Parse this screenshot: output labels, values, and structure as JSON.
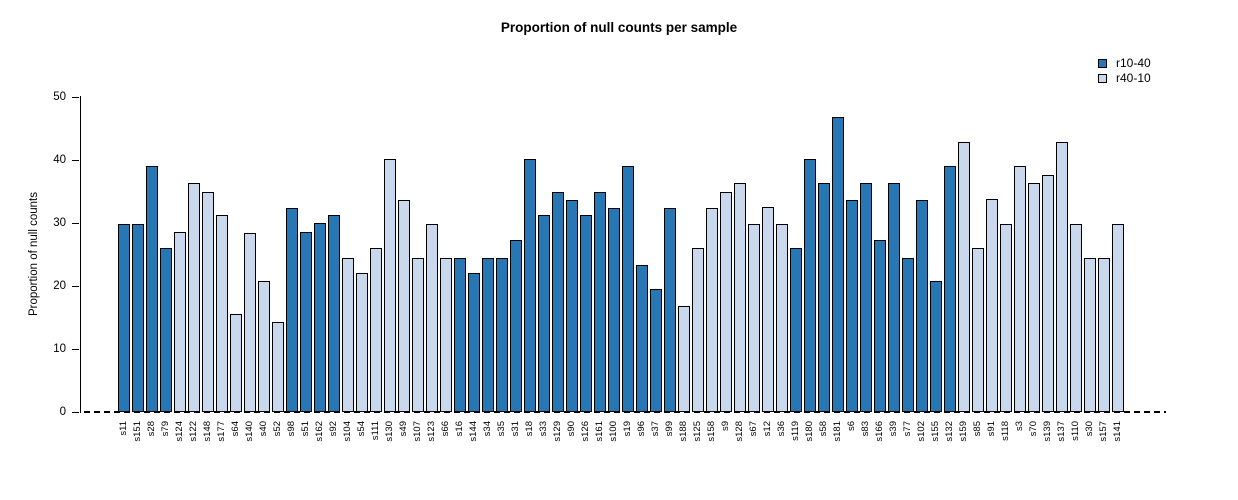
{
  "title": "Proportion of null counts per sample",
  "ylabel": "Proportion of null counts",
  "chart_data": {
    "type": "bar",
    "title": "Proportion of null counts per sample",
    "xlabel": "",
    "ylabel": "Proportion of null counts",
    "ylim": [
      0,
      50
    ],
    "y_ticks": [
      0,
      10,
      20,
      30,
      40,
      50
    ],
    "grid": false,
    "x_axis_style": "dashed",
    "legend_position": "top-right",
    "series_colors": {
      "r10-40": "#2777b4",
      "r40-10": "#c9d8ec"
    },
    "legend": [
      {
        "label": "r10-40",
        "color": "#2777b4"
      },
      {
        "label": "r40-10",
        "color": "#c9d8ec"
      }
    ],
    "bars": [
      {
        "label": "s11",
        "value": 29.8,
        "group": "r10-40"
      },
      {
        "label": "s151",
        "value": 29.8,
        "group": "r10-40"
      },
      {
        "label": "s28",
        "value": 39.0,
        "group": "r10-40"
      },
      {
        "label": "s79",
        "value": 26.0,
        "group": "r10-40"
      },
      {
        "label": "s124",
        "value": 28.6,
        "group": "r40-10"
      },
      {
        "label": "s122",
        "value": 36.4,
        "group": "r40-10"
      },
      {
        "label": "s148",
        "value": 35.0,
        "group": "r40-10"
      },
      {
        "label": "s177",
        "value": 31.2,
        "group": "r40-10"
      },
      {
        "label": "s64",
        "value": 15.6,
        "group": "r40-10"
      },
      {
        "label": "s140",
        "value": 28.5,
        "group": "r40-10"
      },
      {
        "label": "s40",
        "value": 20.8,
        "group": "r40-10"
      },
      {
        "label": "s52",
        "value": 14.3,
        "group": "r40-10"
      },
      {
        "label": "s98",
        "value": 32.4,
        "group": "r10-40"
      },
      {
        "label": "s51",
        "value": 28.6,
        "group": "r10-40"
      },
      {
        "label": "s162",
        "value": 30.0,
        "group": "r10-40"
      },
      {
        "label": "s92",
        "value": 31.2,
        "group": "r10-40"
      },
      {
        "label": "s104",
        "value": 24.5,
        "group": "r40-10"
      },
      {
        "label": "s54",
        "value": 22.1,
        "group": "r40-10"
      },
      {
        "label": "s111",
        "value": 26.0,
        "group": "r40-10"
      },
      {
        "label": "s130",
        "value": 40.2,
        "group": "r40-10"
      },
      {
        "label": "s49",
        "value": 33.7,
        "group": "r40-10"
      },
      {
        "label": "s107",
        "value": 24.5,
        "group": "r40-10"
      },
      {
        "label": "s123",
        "value": 29.8,
        "group": "r40-10"
      },
      {
        "label": "s66",
        "value": 24.5,
        "group": "r40-10"
      },
      {
        "label": "s16",
        "value": 24.5,
        "group": "r10-40"
      },
      {
        "label": "s144",
        "value": 22.0,
        "group": "r10-40"
      },
      {
        "label": "s34",
        "value": 24.5,
        "group": "r10-40"
      },
      {
        "label": "s35",
        "value": 24.5,
        "group": "r10-40"
      },
      {
        "label": "s31",
        "value": 27.3,
        "group": "r10-40"
      },
      {
        "label": "s18",
        "value": 40.1,
        "group": "r10-40"
      },
      {
        "label": "s33",
        "value": 31.2,
        "group": "r10-40"
      },
      {
        "label": "s129",
        "value": 35.0,
        "group": "r10-40"
      },
      {
        "label": "s90",
        "value": 33.7,
        "group": "r10-40"
      },
      {
        "label": "s126",
        "value": 31.2,
        "group": "r10-40"
      },
      {
        "label": "s161",
        "value": 35.0,
        "group": "r10-40"
      },
      {
        "label": "s100",
        "value": 32.4,
        "group": "r10-40"
      },
      {
        "label": "s19",
        "value": 39.0,
        "group": "r10-40"
      },
      {
        "label": "s96",
        "value": 23.4,
        "group": "r10-40"
      },
      {
        "label": "s37",
        "value": 19.6,
        "group": "r10-40"
      },
      {
        "label": "s99",
        "value": 32.4,
        "group": "r10-40"
      },
      {
        "label": "s188",
        "value": 16.9,
        "group": "r40-10"
      },
      {
        "label": "s125",
        "value": 26.0,
        "group": "r40-10"
      },
      {
        "label": "s158",
        "value": 32.4,
        "group": "r40-10"
      },
      {
        "label": "s9",
        "value": 35.0,
        "group": "r40-10"
      },
      {
        "label": "s128",
        "value": 36.4,
        "group": "r40-10"
      },
      {
        "label": "s67",
        "value": 29.9,
        "group": "r40-10"
      },
      {
        "label": "s12",
        "value": 32.5,
        "group": "r40-10"
      },
      {
        "label": "s36",
        "value": 29.8,
        "group": "r40-10"
      },
      {
        "label": "s119",
        "value": 26.0,
        "group": "r10-40"
      },
      {
        "label": "s180",
        "value": 40.2,
        "group": "r10-40"
      },
      {
        "label": "s58",
        "value": 36.4,
        "group": "r10-40"
      },
      {
        "label": "s181",
        "value": 46.8,
        "group": "r10-40"
      },
      {
        "label": "s6",
        "value": 33.7,
        "group": "r10-40"
      },
      {
        "label": "s83",
        "value": 36.4,
        "group": "r10-40"
      },
      {
        "label": "s166",
        "value": 27.3,
        "group": "r10-40"
      },
      {
        "label": "s39",
        "value": 36.4,
        "group": "r10-40"
      },
      {
        "label": "s77",
        "value": 24.5,
        "group": "r10-40"
      },
      {
        "label": "s102",
        "value": 33.7,
        "group": "r10-40"
      },
      {
        "label": "s155",
        "value": 20.8,
        "group": "r10-40"
      },
      {
        "label": "s132",
        "value": 39.0,
        "group": "r10-40"
      },
      {
        "label": "s159",
        "value": 42.8,
        "group": "r40-10"
      },
      {
        "label": "s85",
        "value": 26.0,
        "group": "r40-10"
      },
      {
        "label": "s91",
        "value": 33.8,
        "group": "r40-10"
      },
      {
        "label": "s118",
        "value": 29.9,
        "group": "r40-10"
      },
      {
        "label": "s3",
        "value": 39.0,
        "group": "r40-10"
      },
      {
        "label": "s70",
        "value": 36.4,
        "group": "r40-10"
      },
      {
        "label": "s139",
        "value": 37.6,
        "group": "r40-10"
      },
      {
        "label": "s137",
        "value": 42.8,
        "group": "r40-10"
      },
      {
        "label": "s110",
        "value": 29.8,
        "group": "r40-10"
      },
      {
        "label": "s30",
        "value": 24.5,
        "group": "r40-10"
      },
      {
        "label": "s157",
        "value": 24.5,
        "group": "r40-10"
      },
      {
        "label": "s141",
        "value": 29.8,
        "group": "r40-10"
      }
    ]
  }
}
